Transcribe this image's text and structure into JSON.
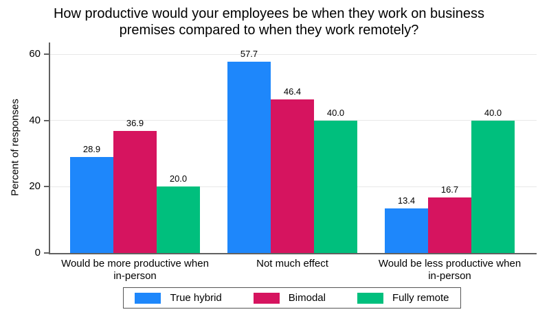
{
  "chart_data": {
    "type": "bar",
    "title": "How productive would your employees be when they work on business premises compared to when they work remotely?",
    "xlabel": "",
    "ylabel": "Percent of responses",
    "ylim": [
      0,
      63.6
    ],
    "yticks": [
      0,
      20,
      40,
      60
    ],
    "grid": true,
    "legend_position": "bottom",
    "value_label_decimals": 1,
    "categories": [
      "Would be more productive when in-person",
      "Not much effect",
      "Would be less productive when in-person"
    ],
    "series": [
      {
        "name": "True hybrid",
        "color": "#1E87FB",
        "values": [
          28.9,
          57.7,
          13.4
        ]
      },
      {
        "name": "Bimodal",
        "color": "#D6145F",
        "values": [
          36.9,
          46.4,
          16.7
        ]
      },
      {
        "name": "Fully remote",
        "color": "#00BF7D",
        "values": [
          20.0,
          40.0,
          40.0
        ]
      }
    ]
  },
  "colors": {
    "gridline": "#e7e7e7",
    "axis": "#606060",
    "legend_border": "#545454",
    "text": "#000000",
    "background": "#ffffff"
  }
}
